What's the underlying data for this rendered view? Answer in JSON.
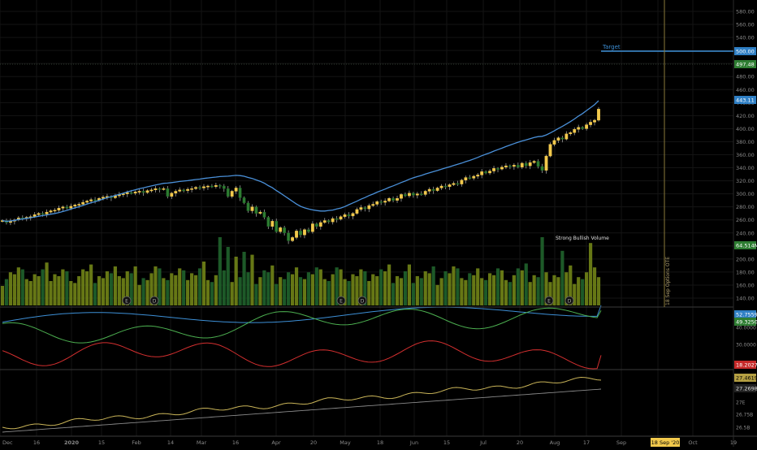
{
  "colors": {
    "background": "#000000",
    "grid": "#141414",
    "divider": "#3a3a3a",
    "axis_text": "#8a8a8a",
    "candle_up": "#f2c94c",
    "candle_down": "#2e7d32",
    "candle_wick": "#9e9e9e",
    "vol_up": "#6b7d16",
    "vol_down": "#1f5e2a",
    "ma_line": "#4a90d9",
    "target_line": "#3d8fd6",
    "expiry_line": "#8a7a3a",
    "dmi_plus": "#4caf50",
    "dmi_minus": "#d32f2f",
    "adx": "#3d8fd6",
    "bottom_line1": "#c9b458",
    "bottom_line2": "#8a8a8a"
  },
  "labels": {
    "target": "Target",
    "expiry": "18 Sep Options OTE",
    "volume_note": "Strong Bullish Volume",
    "event_markers": [
      "E",
      "D",
      "E",
      "D",
      "E",
      "D"
    ]
  },
  "price_axis": {
    "ticks": [
      "580.00",
      "560.00",
      "540.00",
      "520.00",
      "480.00",
      "460.00",
      "440.00",
      "420.00",
      "400.00",
      "380.00",
      "360.00",
      "340.00",
      "320.00",
      "300.00",
      "280.00",
      "260.00",
      "240.00",
      "220.00",
      "200.00",
      "180.00",
      "160.00",
      "140.00"
    ],
    "badge_target": "500.00",
    "badge_close": "497.48",
    "badge_ma": "443.11",
    "badge_volume": "64.514M"
  },
  "dmi_axis": {
    "ticks": [
      "40.0000",
      "30.0000",
      "20.0000"
    ],
    "badge_adx": "52.7559",
    "badge_plus": "49.3250",
    "badge_minus": "18.2027"
  },
  "bottom_axis": {
    "ticks": [
      "27E",
      "26.75B",
      "26.5B"
    ],
    "badge_a": "27.4619",
    "badge_b": "27.2698"
  },
  "time_axis": {
    "labels": [
      "Dec",
      "16",
      "2020",
      "15",
      "Feb",
      "14",
      "Mar",
      "16",
      "Apr",
      "20",
      "May",
      "18",
      "Jun",
      "15",
      "Jul",
      "20",
      "Aug",
      "17",
      "Sep",
      "Oct",
      "19"
    ],
    "highlight": "18 Sep '20"
  },
  "chart_data": {
    "type": "candlestick",
    "price_start": 259,
    "price_steps": [
      -3,
      2,
      2,
      3,
      -1,
      2,
      1,
      3,
      2,
      -1,
      3,
      2,
      1,
      3,
      2,
      -2,
      3,
      2,
      1,
      3,
      2,
      2,
      -1,
      3,
      2,
      1,
      -2,
      3,
      2,
      1,
      2,
      -1,
      2,
      1,
      -2,
      3,
      1,
      2,
      -1,
      1,
      -12,
      5,
      3,
      2,
      -1,
      2,
      1,
      2,
      -1,
      2,
      1,
      -1,
      2,
      -1,
      -4,
      -12,
      8,
      5,
      -15,
      -8,
      -12,
      6,
      -10,
      2,
      -8,
      -14,
      8,
      -16,
      6,
      -8,
      -12,
      5,
      10,
      -6,
      8,
      -3,
      12,
      -4,
      6,
      3,
      -2,
      5,
      -1,
      4,
      3,
      -2,
      4,
      6,
      3,
      -2,
      5,
      2,
      4,
      -1,
      2,
      4,
      -3,
      3,
      6,
      -2,
      4,
      -3,
      2,
      -1,
      5,
      3,
      -2,
      4,
      3,
      -1,
      3,
      2,
      -1,
      6,
      4,
      -1,
      3,
      2,
      5,
      -2,
      3,
      4,
      -1,
      3,
      2,
      -1,
      2,
      -3,
      6,
      -4,
      5,
      2,
      -8,
      -6,
      22,
      18,
      6,
      4,
      -2,
      8,
      2,
      5,
      3,
      -2,
      6,
      4,
      3,
      17
    ],
    "ma_start": 258,
    "ma_end": 443,
    "target": 500,
    "close": 497.48,
    "expiry": "18 Sep '20",
    "volume_base": 20,
    "volume_spikes": {
      "50": 45,
      "54": 70,
      "56": 60,
      "58": 50,
      "60": 55,
      "62": 52,
      "134": 70,
      "139": 56,
      "146": 64
    },
    "dmi": {
      "adx": {
        "start": 38,
        "end": 52.76
      },
      "plus": {
        "start": 32,
        "end": 49.33
      },
      "minus": {
        "start": 20,
        "end": 18.2
      }
    },
    "bottom": {
      "series_a_end": 27.4619,
      "series_b_end": 27.2698
    }
  }
}
